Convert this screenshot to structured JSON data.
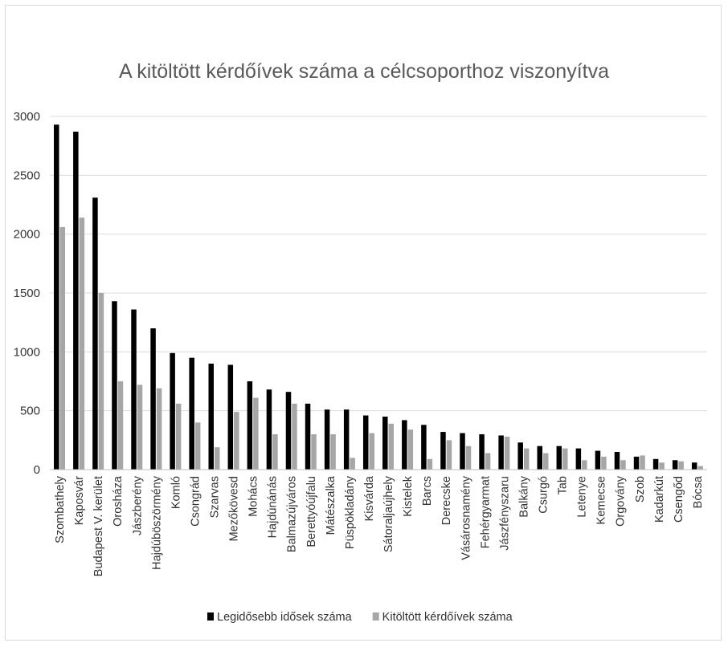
{
  "colors": {
    "series1": "#000000",
    "series2": "#a6a6a6"
  },
  "chart_data": {
    "type": "bar",
    "title": "A kitöltött kérdőívek száma a célcsoporthoz  viszonyítva",
    "xlabel": "",
    "ylabel": "",
    "ylim": [
      0,
      3000
    ],
    "yticks": [
      "0",
      "500",
      "1000",
      "1500",
      "2000",
      "2500",
      "3000"
    ],
    "grid": true,
    "legend_position": "bottom",
    "categories": [
      "Szombathely",
      "Kaposvár",
      "Budapest V. kerület",
      "Orosháza",
      "Jászberény",
      "Hajdúböszörmény",
      "Komló",
      "Csongrád",
      "Szarvas",
      "Mezőkövesd",
      "Mohács",
      "Hajdúnánás",
      "Balmazújváros",
      "Berettyóújfalu",
      "Mátészalka",
      "Püspökladány",
      "Kisvárda",
      "Sátoraljaújhely",
      "Kistelek",
      "Barcs",
      "Derecske",
      "Vásárosnamény",
      "Fehérgyarmat",
      "Jászfényszaru",
      "Balkány",
      "Csurgó",
      "Tab",
      "Letenye",
      "Kemecse",
      "Orgovány",
      "Szob",
      "Kadarkút",
      "Csengőd",
      "Bócsa"
    ],
    "series": [
      {
        "name": "Legidősebb idősek száma",
        "values": [
          2930,
          2870,
          2310,
          1430,
          1360,
          1200,
          990,
          950,
          900,
          890,
          750,
          680,
          660,
          560,
          510,
          510,
          460,
          450,
          420,
          380,
          320,
          310,
          300,
          290,
          230,
          200,
          200,
          180,
          160,
          150,
          110,
          90,
          80,
          60
        ]
      },
      {
        "name": "Kitöltött kérdőívek száma",
        "values": [
          2060,
          2140,
          1500,
          750,
          720,
          690,
          560,
          400,
          190,
          490,
          610,
          300,
          560,
          300,
          300,
          100,
          310,
          390,
          340,
          90,
          250,
          200,
          140,
          280,
          180,
          140,
          180,
          80,
          110,
          80,
          120,
          60,
          70,
          30
        ]
      }
    ]
  }
}
